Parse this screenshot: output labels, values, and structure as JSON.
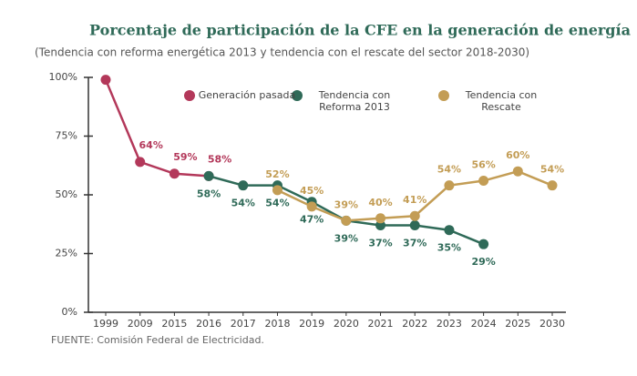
{
  "chart_data": {
    "type": "line",
    "title": "Porcentaje de participación de la CFE en la generación de energía",
    "subtitle": "(Tendencia con reforma energética 2013 y tendencia con el rescate del sector 2018-2030)",
    "source": "FUENTE: Comisión Federal de Electricidad.",
    "categories": [
      "1999",
      "2009",
      "2015",
      "2016",
      "2017",
      "2018",
      "2019",
      "2020",
      "2021",
      "2022",
      "2023",
      "2024",
      "2025",
      "2030"
    ],
    "series": [
      {
        "name": "Generación pasada",
        "color": "#b3385a",
        "values": [
          99,
          64,
          59,
          58,
          null,
          null,
          null,
          null,
          null,
          null,
          null,
          null,
          null,
          null
        ],
        "value_labels": [
          null,
          "64%",
          "59%",
          "58%",
          null,
          null,
          null,
          null,
          null,
          null,
          null,
          null,
          null,
          null
        ]
      },
      {
        "name": "Tendencia con Reforma 2013",
        "color": "#2f6a58",
        "values": [
          null,
          null,
          null,
          58,
          54,
          54,
          47,
          39,
          37,
          37,
          35,
          29,
          null,
          null
        ],
        "value_labels": [
          null,
          null,
          null,
          "58%",
          "54%",
          "54%",
          "47%",
          "39%",
          "37%",
          "37%",
          "35%",
          "29%",
          null,
          null
        ]
      },
      {
        "name": "Tendencia con Rescate",
        "color": "#c39d55",
        "values": [
          null,
          null,
          null,
          null,
          null,
          52,
          45,
          39,
          40,
          41,
          54,
          56,
          60,
          54
        ],
        "value_labels": [
          null,
          null,
          null,
          null,
          null,
          "52%",
          "45%",
          "39%",
          "40%",
          "41%",
          "54%",
          "56%",
          "60%",
          "54%"
        ]
      }
    ],
    "ylim": [
      0,
      100
    ],
    "yticks": [
      {
        "value": 0,
        "label": "0%"
      },
      {
        "value": 25,
        "label": "25%"
      },
      {
        "value": 50,
        "label": "50%"
      },
      {
        "value": 75,
        "label": "75%"
      },
      {
        "value": 100,
        "label": "100%"
      }
    ]
  }
}
